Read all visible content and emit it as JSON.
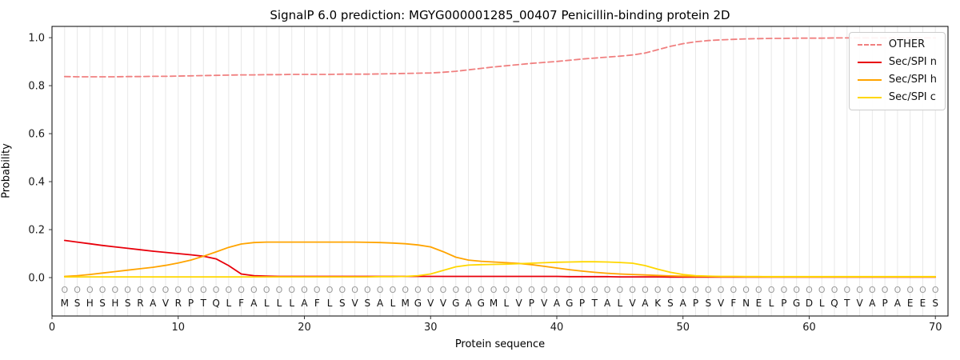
{
  "chart_data": {
    "type": "line",
    "title": "SignalP 6.0 prediction: MGYG000001285_00407 Penicillin-binding protein 2D",
    "xlabel": "Protein sequence",
    "ylabel": "Probability",
    "xlim": [
      0,
      71
    ],
    "ylim": [
      -0.16,
      1.05
    ],
    "x_ticks": [
      0,
      10,
      20,
      30,
      40,
      50,
      60,
      70
    ],
    "y_ticks": [
      0.0,
      0.2,
      0.4,
      0.6,
      0.8,
      1.0
    ],
    "grid": "vertical line per residue position",
    "legend_position": "upper right",
    "sequence": "MSHSHSRAVRPTQLFALLLAFLSVSALMGVVGAGMLVPVAGPTALVAKSAPSVFNELPGDLQTVAPAEES",
    "marker_symbol": "O",
    "series": [
      {
        "name": "OTHER",
        "color": "#f08080",
        "style": "dashed",
        "values": [
          0.838,
          0.837,
          0.837,
          0.837,
          0.837,
          0.838,
          0.838,
          0.839,
          0.839,
          0.84,
          0.841,
          0.842,
          0.843,
          0.844,
          0.845,
          0.845,
          0.846,
          0.846,
          0.847,
          0.847,
          0.847,
          0.847,
          0.848,
          0.848,
          0.848,
          0.849,
          0.85,
          0.851,
          0.852,
          0.853,
          0.856,
          0.86,
          0.866,
          0.872,
          0.878,
          0.883,
          0.888,
          0.893,
          0.897,
          0.901,
          0.906,
          0.911,
          0.915,
          0.919,
          0.923,
          0.928,
          0.936,
          0.95,
          0.964,
          0.975,
          0.983,
          0.988,
          0.991,
          0.993,
          0.995,
          0.996,
          0.997,
          0.997,
          0.998,
          0.998,
          0.998,
          0.999,
          0.999,
          0.999,
          0.999,
          0.999,
          0.999,
          0.999,
          0.999,
          0.999
        ]
      },
      {
        "name": "Sec/SPI n",
        "color": "#e8000b",
        "style": "solid",
        "values": [
          0.155,
          0.148,
          0.141,
          0.134,
          0.128,
          0.122,
          0.116,
          0.11,
          0.105,
          0.1,
          0.095,
          0.089,
          0.078,
          0.05,
          0.015,
          0.008,
          0.006,
          0.005,
          0.005,
          0.005,
          0.005,
          0.005,
          0.005,
          0.005,
          0.005,
          0.005,
          0.005,
          0.005,
          0.005,
          0.005,
          0.005,
          0.005,
          0.005,
          0.005,
          0.005,
          0.005,
          0.005,
          0.005,
          0.005,
          0.005,
          0.004,
          0.004,
          0.004,
          0.004,
          0.003,
          0.003,
          0.003,
          0.003,
          0.002,
          0.002,
          0.002,
          0.002,
          0.002,
          0.002,
          0.002,
          0.002,
          0.002,
          0.002,
          0.002,
          0.002,
          0.002,
          0.002,
          0.002,
          0.002,
          0.002,
          0.002,
          0.002,
          0.002,
          0.002,
          0.002
        ]
      },
      {
        "name": "Sec/SPI h",
        "color": "#ffa400",
        "style": "solid",
        "values": [
          0.005,
          0.008,
          0.013,
          0.019,
          0.025,
          0.031,
          0.037,
          0.043,
          0.051,
          0.061,
          0.073,
          0.089,
          0.107,
          0.126,
          0.14,
          0.146,
          0.148,
          0.148,
          0.148,
          0.148,
          0.148,
          0.148,
          0.148,
          0.148,
          0.147,
          0.146,
          0.144,
          0.141,
          0.136,
          0.128,
          0.108,
          0.085,
          0.073,
          0.068,
          0.065,
          0.062,
          0.059,
          0.054,
          0.047,
          0.04,
          0.033,
          0.027,
          0.022,
          0.018,
          0.015,
          0.013,
          0.011,
          0.009,
          0.007,
          0.006,
          0.005,
          0.005,
          0.004,
          0.004,
          0.004,
          0.004,
          0.003,
          0.003,
          0.003,
          0.003,
          0.003,
          0.003,
          0.003,
          0.003,
          0.003,
          0.003,
          0.003,
          0.003,
          0.003,
          0.003
        ]
      },
      {
        "name": "Sec/SPI c",
        "color": "#ffd700",
        "style": "solid",
        "values": [
          0.003,
          0.003,
          0.003,
          0.003,
          0.003,
          0.003,
          0.003,
          0.003,
          0.003,
          0.003,
          0.003,
          0.003,
          0.003,
          0.003,
          0.003,
          0.003,
          0.003,
          0.003,
          0.003,
          0.003,
          0.003,
          0.003,
          0.003,
          0.003,
          0.003,
          0.004,
          0.004,
          0.005,
          0.008,
          0.015,
          0.03,
          0.045,
          0.052,
          0.054,
          0.055,
          0.056,
          0.058,
          0.06,
          0.062,
          0.064,
          0.065,
          0.066,
          0.066,
          0.065,
          0.063,
          0.06,
          0.05,
          0.035,
          0.022,
          0.013,
          0.008,
          0.006,
          0.005,
          0.005,
          0.004,
          0.004,
          0.004,
          0.004,
          0.004,
          0.004,
          0.004,
          0.004,
          0.004,
          0.004,
          0.004,
          0.004,
          0.004,
          0.004,
          0.004,
          0.004
        ]
      }
    ]
  }
}
